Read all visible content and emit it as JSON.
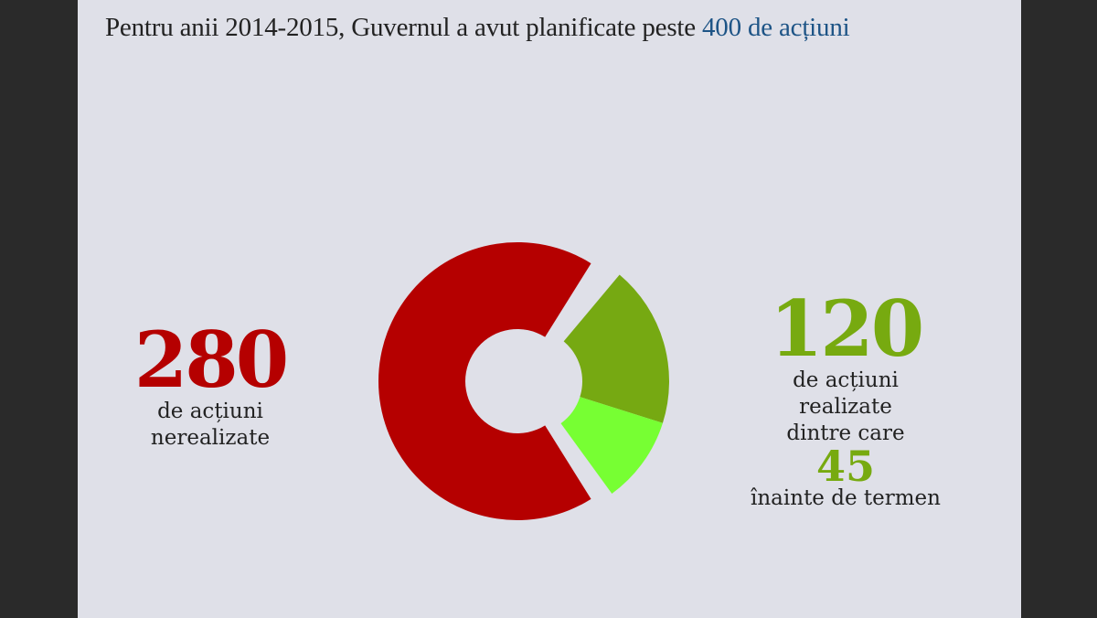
{
  "title": {
    "text": "Pentru anii 2014-2015, Guvernul a avut planificate peste ",
    "highlight": "400 de acțiuni"
  },
  "left": {
    "value": "280",
    "line1": "de acțiuni",
    "line2": "nerealizate"
  },
  "right": {
    "value": "120",
    "line1": "de acțiuni",
    "line2": "realizate",
    "line3": "dintre care",
    "value2": "45",
    "line4": "înainte de termen"
  },
  "chart_data": {
    "type": "pie",
    "title": "Pentru anii 2014-2015, Guvernul a avut planificate peste 400 de acțiuni",
    "total": 400,
    "series": [
      {
        "name": "de acțiuni nerealizate",
        "value": 280,
        "color": "#b50000"
      },
      {
        "name": "realizate (în termen)",
        "value": 75,
        "color": "#76a912"
      },
      {
        "name": "înainte de termen",
        "value": 45,
        "color": "#77ff33"
      }
    ]
  }
}
